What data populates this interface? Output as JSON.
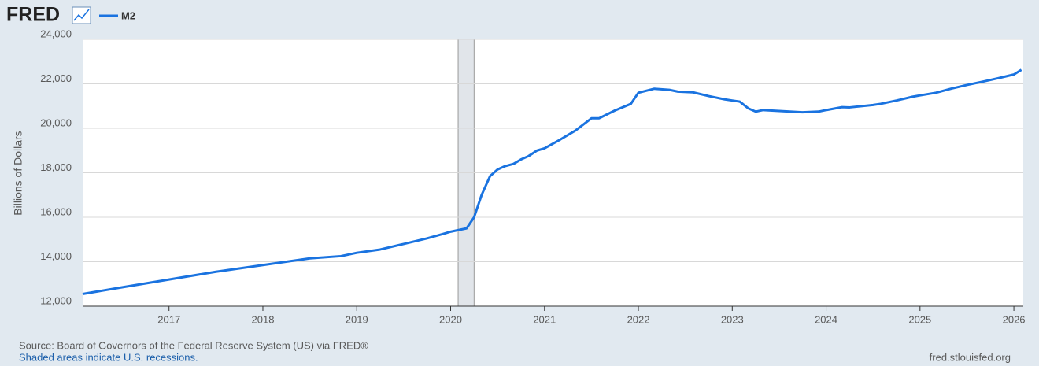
{
  "chart_data": {
    "type": "line",
    "brand": "FRED",
    "y_label": "Billions of Dollars",
    "source": "Source: Board of Governors of the Federal Reserve System (US) via FRED®",
    "note": "Shaded areas indicate U.S. recessions.",
    "site": "fred.stlouisfed.org",
    "x": [
      2016.08,
      2016.5,
      2017.0,
      2017.5,
      2018.0,
      2018.5,
      2018.83,
      2019.0,
      2019.25,
      2019.5,
      2019.75,
      2019.92,
      2020.0,
      2020.17,
      2020.25,
      2020.33,
      2020.42,
      2020.5,
      2020.58,
      2020.67,
      2020.75,
      2020.83,
      2020.92,
      2021.0,
      2021.17,
      2021.33,
      2021.5,
      2021.58,
      2021.75,
      2021.92,
      2022.0,
      2022.17,
      2022.33,
      2022.42,
      2022.58,
      2022.75,
      2022.92,
      2023.0,
      2023.08,
      2023.17,
      2023.25,
      2023.33,
      2023.5,
      2023.75,
      2023.92,
      2024.0,
      2024.17,
      2024.25,
      2024.5,
      2024.58,
      2024.75,
      2024.92,
      2025.0,
      2025.17,
      2025.33,
      2025.5,
      2025.67,
      2025.83,
      2026.0,
      2026.08
    ],
    "series": [
      {
        "name": "M2",
        "color": "#1a73e0",
        "values": [
          12550,
          12850,
          13200,
          13550,
          13850,
          14150,
          14250,
          14400,
          14550,
          14800,
          15050,
          15250,
          15350,
          15500,
          16000,
          17000,
          17850,
          18150,
          18300,
          18400,
          18600,
          18750,
          19000,
          19100,
          19500,
          19900,
          20450,
          20450,
          20800,
          21100,
          21600,
          21780,
          21730,
          21650,
          21620,
          21450,
          21300,
          21250,
          21200,
          20900,
          20750,
          20820,
          20780,
          20720,
          20750,
          20820,
          20950,
          20940,
          21050,
          21100,
          21250,
          21420,
          21480,
          21600,
          21780,
          21950,
          22100,
          22250,
          22420,
          22630
        ]
      }
    ],
    "recessions": [
      [
        2020.08,
        2020.25
      ]
    ],
    "xlim": [
      2016.08,
      2026.1
    ],
    "xticks": [
      2017,
      2018,
      2019,
      2020,
      2021,
      2022,
      2023,
      2024,
      2025,
      2026
    ],
    "ylim": [
      12000,
      24000
    ],
    "yticks": [
      {
        "value": 12000,
        "label": "12,000"
      },
      {
        "value": 14000,
        "label": "14,000"
      },
      {
        "value": 16000,
        "label": "16,000"
      },
      {
        "value": 18000,
        "label": "18,000"
      },
      {
        "value": 20000,
        "label": "20,000"
      },
      {
        "value": 22000,
        "label": "22,000"
      },
      {
        "value": 24000,
        "label": "24,000"
      }
    ],
    "grid": true
  }
}
